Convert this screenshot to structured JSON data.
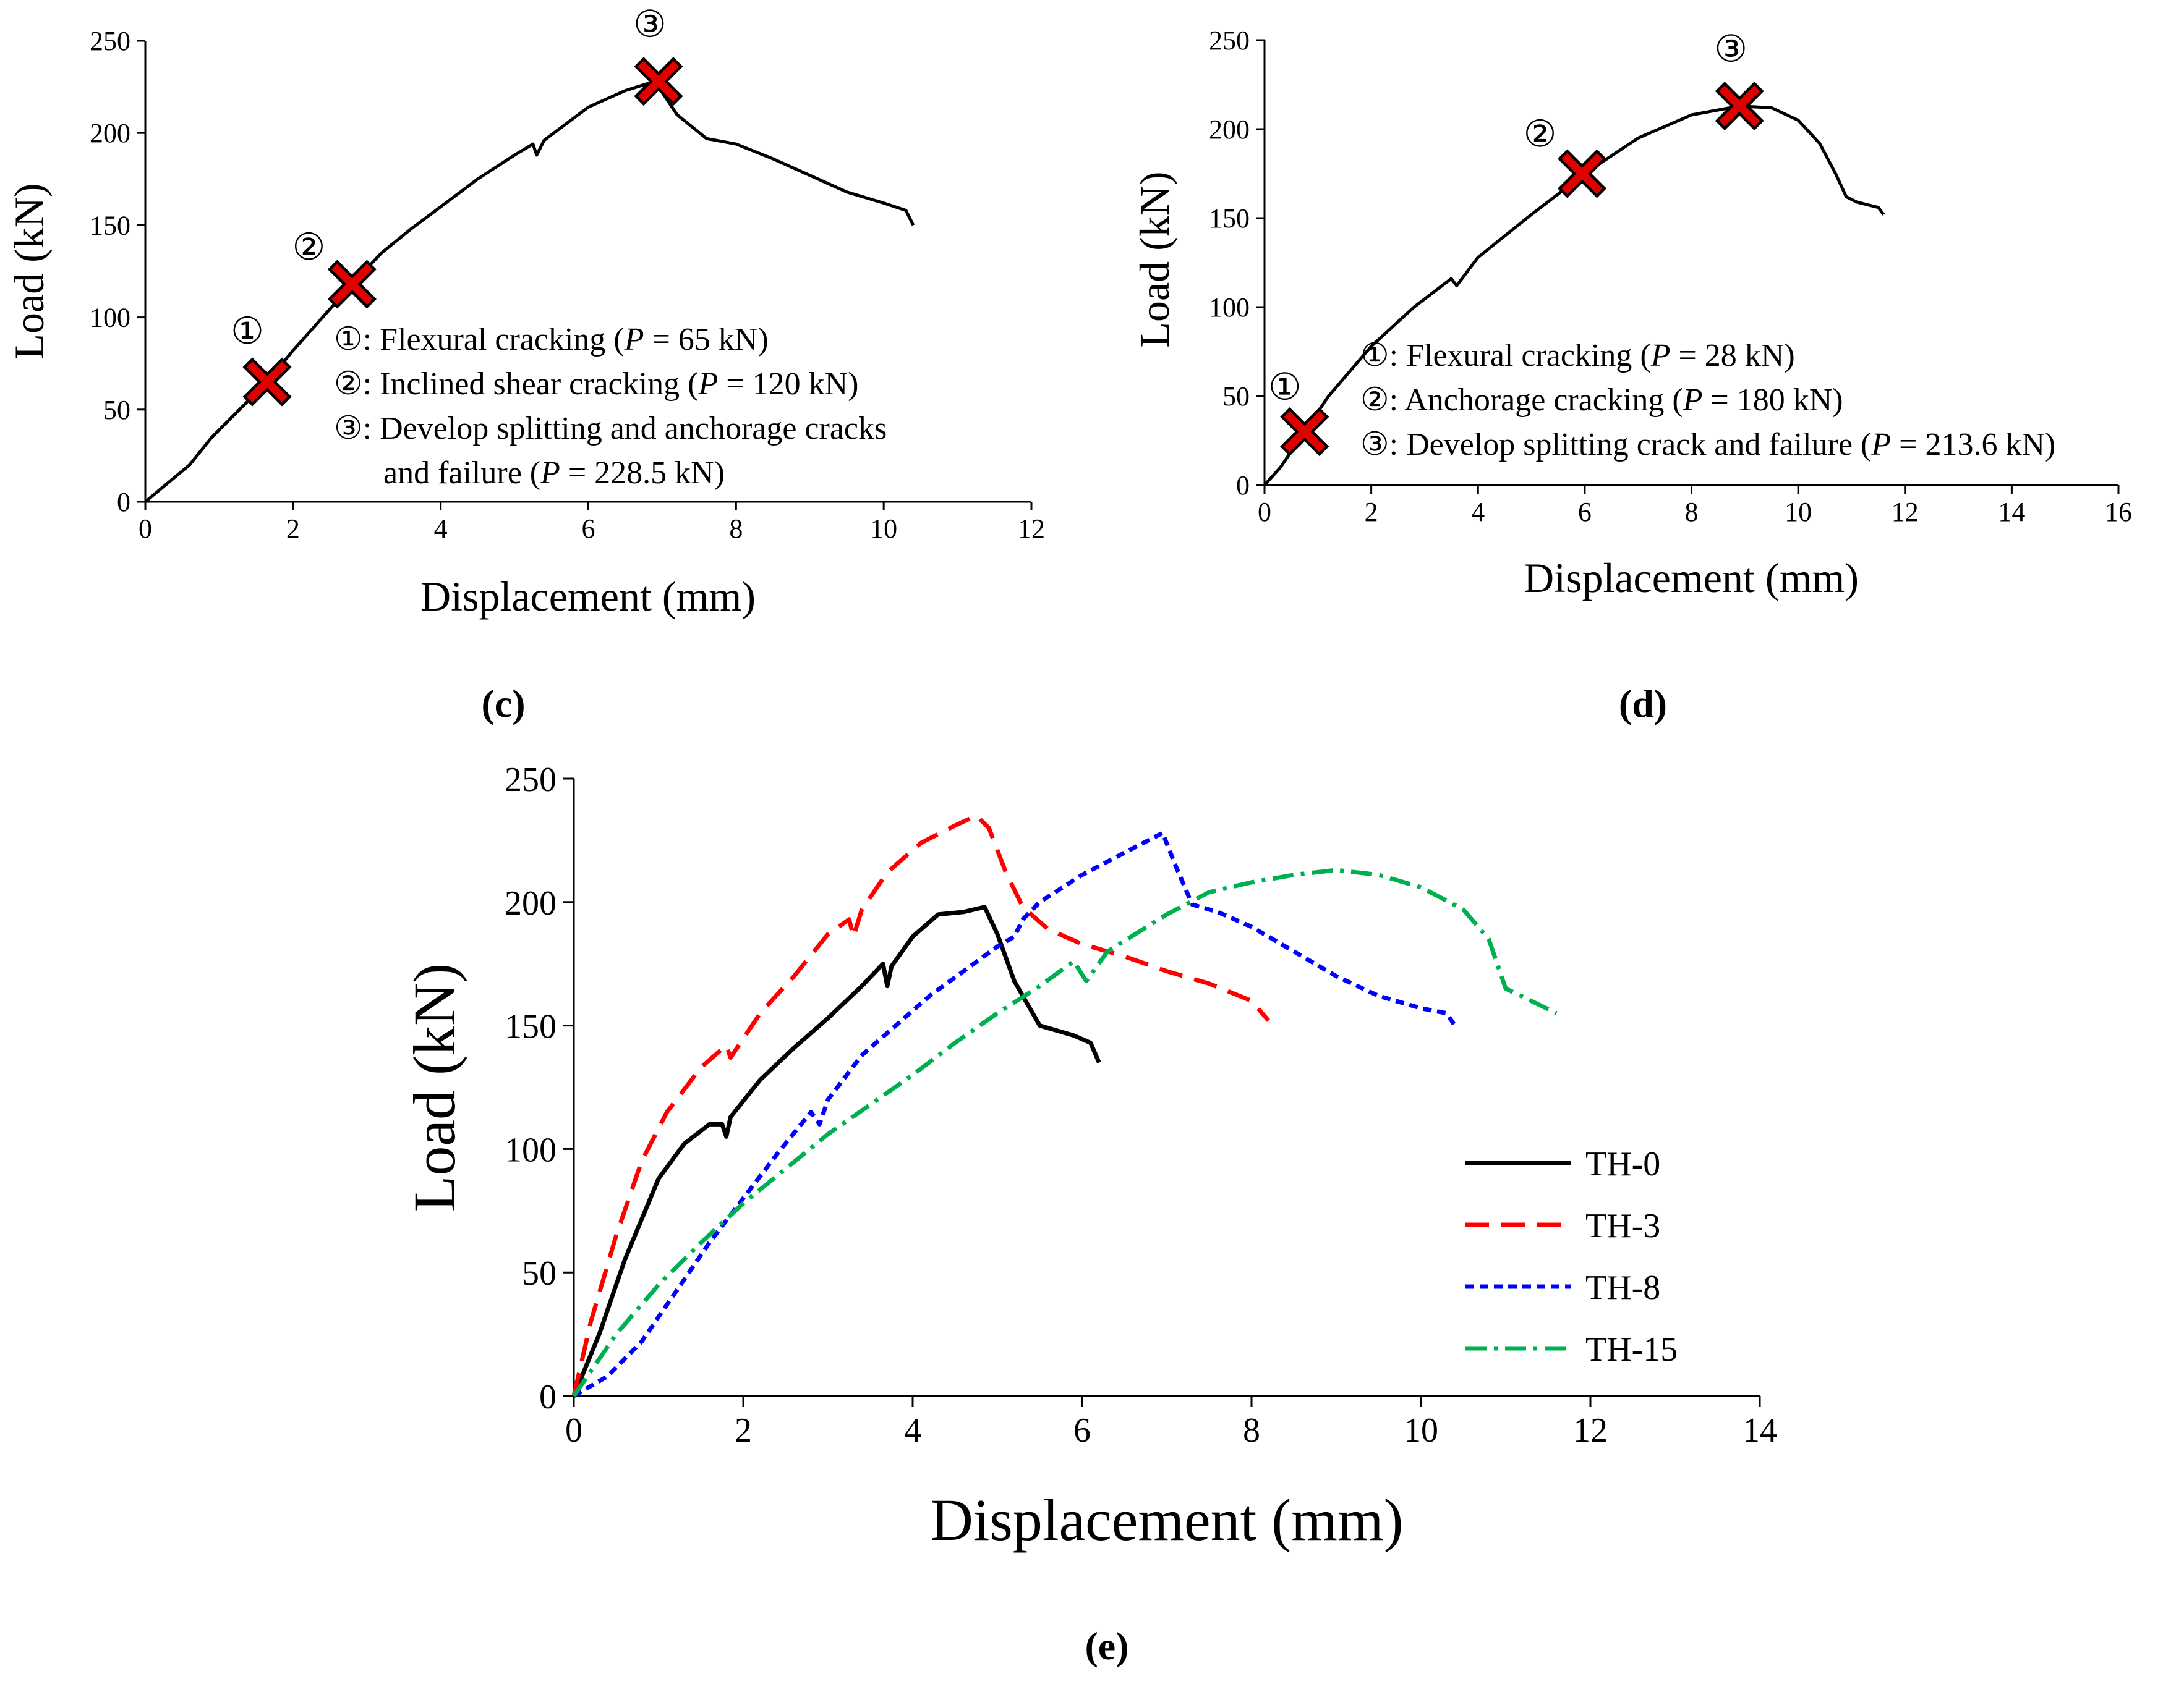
{
  "chart_data": [
    {
      "panel": "(c)",
      "type": "line",
      "xlabel": "Displacement (mm)",
      "ylabel": "Load (kN)",
      "xlim": [
        0,
        12
      ],
      "ylim": [
        0,
        250
      ],
      "xticks": [
        0,
        2,
        4,
        6,
        8,
        10,
        12
      ],
      "yticks": [
        0,
        50,
        100,
        150,
        200,
        250
      ],
      "x_tick_labels": [
        "0",
        "2",
        "4",
        "6",
        "8",
        "10",
        "12"
      ],
      "y_tick_labels": [
        "0",
        "50",
        "100",
        "150",
        "200",
        "250"
      ],
      "series": [
        {
          "color": "#000000",
          "dash": "solid",
          "x": [
            0,
            0.3,
            0.6,
            0.9,
            1.2,
            1.65,
            2.0,
            2.4,
            2.8,
            3.2,
            3.6,
            4.0,
            4.5,
            5.0,
            5.25,
            5.3,
            5.4,
            5.7,
            6.0,
            6.5,
            6.9,
            7.2,
            7.6,
            8.0,
            8.5,
            9.0,
            9.5,
            10.0,
            10.3,
            10.4
          ],
          "y": [
            0,
            10,
            20,
            35,
            47,
            65,
            82,
            100,
            118,
            135,
            148,
            160,
            175,
            188,
            194,
            188,
            196,
            205,
            214,
            223,
            228,
            210,
            197,
            194,
            186,
            177,
            168,
            162,
            158,
            150
          ]
        }
      ],
      "markers": [
        {
          "label": "①",
          "x": 1.65,
          "y": 65
        },
        {
          "label": "②",
          "x": 2.8,
          "y": 118
        },
        {
          "label": "③",
          "x": 6.95,
          "y": 228
        }
      ],
      "annotations": [
        {
          "num": "①",
          "text_before": ": Flexural cracking (",
          "italic": "P",
          "text_after": " = 65 kN)"
        },
        {
          "num": "②",
          "text_before": ": Inclined shear cracking (",
          "italic": "P",
          "text_after": " = 120 kN)"
        },
        {
          "num": "③",
          "text_before": ": Develop splitting and anchorage cracks",
          "italic": "",
          "text_after": ""
        },
        {
          "num": "",
          "text_before": "and failure (",
          "italic": "P",
          "text_after": " = 228.5 kN)"
        }
      ]
    },
    {
      "panel": "(d)",
      "type": "line",
      "xlabel": "Displacement (mm)",
      "ylabel": "Load (kN)",
      "xlim": [
        0,
        16
      ],
      "ylim": [
        0,
        250
      ],
      "xticks": [
        0,
        2,
        4,
        6,
        8,
        10,
        12,
        14,
        16
      ],
      "yticks": [
        0,
        50,
        100,
        150,
        200,
        250
      ],
      "x_tick_labels": [
        "0",
        "2",
        "4",
        "6",
        "8",
        "10",
        "12",
        "14",
        "16"
      ],
      "y_tick_labels": [
        "0",
        "50",
        "100",
        "150",
        "200",
        "250"
      ],
      "series": [
        {
          "color": "#000000",
          "dash": "solid",
          "x": [
            0,
            0.3,
            0.75,
            1.2,
            2.0,
            2.8,
            3.5,
            3.6,
            4.0,
            5.0,
            6.0,
            7.0,
            8.0,
            8.9,
            9.5,
            10.0,
            10.4,
            10.7,
            10.9,
            11.1,
            11.5,
            11.6
          ],
          "y": [
            0,
            10,
            30,
            50,
            78,
            100,
            116,
            112,
            128,
            152,
            175,
            195,
            208,
            213,
            212,
            205,
            192,
            175,
            162,
            159,
            156,
            152
          ]
        }
      ],
      "markers": [
        {
          "label": "①",
          "x": 0.75,
          "y": 30
        },
        {
          "label": "②",
          "x": 5.95,
          "y": 175
        },
        {
          "label": "③",
          "x": 8.9,
          "y": 213
        }
      ],
      "annotations": [
        {
          "num": "①",
          "text_before": ": Flexural cracking (",
          "italic": "P",
          "text_after": " = 28 kN)"
        },
        {
          "num": "②",
          "text_before": ": Anchorage cracking (",
          "italic": "P",
          "text_after": " = 180 kN)"
        },
        {
          "num": "③",
          "text_before": ": Develop splitting crack and failure (",
          "italic": "P",
          "text_after": " = 213.6 kN)"
        }
      ]
    },
    {
      "panel": "(e)",
      "type": "line",
      "xlabel": "Displacement (mm)",
      "ylabel": "Load (kN)",
      "xlim": [
        0,
        14
      ],
      "ylim": [
        0,
        250
      ],
      "xticks": [
        0,
        2,
        4,
        6,
        8,
        10,
        12,
        14
      ],
      "yticks": [
        0,
        50,
        100,
        150,
        200,
        250
      ],
      "x_tick_labels": [
        "0",
        "2",
        "4",
        "6",
        "8",
        "10",
        "12",
        "14"
      ],
      "y_tick_labels": [
        "0",
        "50",
        "100",
        "150",
        "200",
        "250"
      ],
      "legend_position": "right",
      "series": [
        {
          "name": "TH-0",
          "color": "#000000",
          "dash": "solid",
          "x": [
            0,
            0.3,
            0.6,
            1.0,
            1.3,
            1.6,
            1.75,
            1.8,
            1.85,
            2.2,
            2.6,
            3.0,
            3.4,
            3.65,
            3.7,
            3.75,
            4.0,
            4.3,
            4.6,
            4.85,
            5.0,
            5.2,
            5.5,
            5.9,
            6.1,
            6.2
          ],
          "y": [
            0,
            25,
            55,
            88,
            102,
            110,
            110,
            105,
            113,
            128,
            141,
            153,
            166,
            175,
            166,
            174,
            186,
            195,
            196,
            198,
            187,
            168,
            150,
            146,
            143,
            135
          ]
        },
        {
          "name": "TH-3",
          "color": "#ff0000",
          "dash": "38 20",
          "x": [
            0,
            0.2,
            0.5,
            0.8,
            1.1,
            1.5,
            1.8,
            1.85,
            2.2,
            2.6,
            3.0,
            3.25,
            3.3,
            3.4,
            3.7,
            4.1,
            4.5,
            4.75,
            4.9,
            5.1,
            5.3,
            5.6,
            6.0,
            6.5,
            7.0,
            7.5,
            8.0,
            8.2
          ],
          "y": [
            0,
            30,
            65,
            95,
            115,
            133,
            142,
            137,
            155,
            170,
            187,
            193,
            186,
            197,
            212,
            224,
            231,
            235,
            230,
            212,
            198,
            189,
            183,
            178,
            172,
            167,
            160,
            152
          ]
        },
        {
          "name": "TH-8",
          "color": "#0000ff",
          "dash": "14 9",
          "x": [
            0,
            0.4,
            0.8,
            1.2,
            1.6,
            2.0,
            2.4,
            2.8,
            2.9,
            3.0,
            3.4,
            3.8,
            4.2,
            4.6,
            5.0,
            5.2,
            5.3,
            5.5,
            6.0,
            6.5,
            6.95,
            7.1,
            7.3,
            7.6,
            8.0,
            8.5,
            9.0,
            9.5,
            10.0,
            10.3,
            10.4
          ],
          "y": [
            0,
            8,
            22,
            42,
            62,
            80,
            98,
            115,
            110,
            120,
            138,
            150,
            162,
            172,
            182,
            186,
            193,
            200,
            211,
            220,
            228,
            215,
            199,
            196,
            190,
            180,
            170,
            162,
            157,
            155,
            150
          ]
        },
        {
          "name": "TH-15",
          "color": "#00b050",
          "dash": "34 12 6 12",
          "x": [
            0,
            0.5,
            1.0,
            1.5,
            2.0,
            2.5,
            3.0,
            3.5,
            4.0,
            4.5,
            5.0,
            5.5,
            5.9,
            6.05,
            6.3,
            7.0,
            7.5,
            8.0,
            8.5,
            9.0,
            9.5,
            10.0,
            10.5,
            10.8,
            11.0,
            11.3,
            11.6
          ],
          "y": [
            0,
            25,
            45,
            62,
            78,
            92,
            106,
            118,
            130,
            143,
            155,
            166,
            176,
            168,
            180,
            195,
            204,
            208,
            211,
            213,
            211,
            206,
            197,
            185,
            165,
            160,
            155
          ]
        }
      ]
    }
  ]
}
